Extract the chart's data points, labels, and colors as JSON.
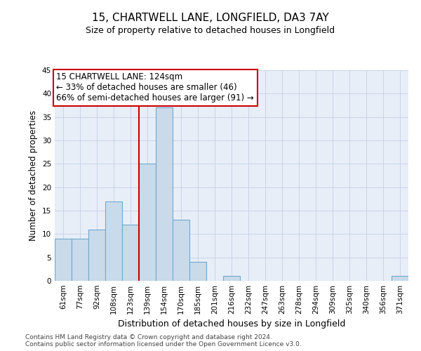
{
  "title1": "15, CHARTWELL LANE, LONGFIELD, DA3 7AY",
  "title2": "Size of property relative to detached houses in Longfield",
  "xlabel": "Distribution of detached houses by size in Longfield",
  "ylabel": "Number of detached properties",
  "categories": [
    "61sqm",
    "77sqm",
    "92sqm",
    "108sqm",
    "123sqm",
    "139sqm",
    "154sqm",
    "170sqm",
    "185sqm",
    "201sqm",
    "216sqm",
    "232sqm",
    "247sqm",
    "263sqm",
    "278sqm",
    "294sqm",
    "309sqm",
    "325sqm",
    "340sqm",
    "356sqm",
    "371sqm"
  ],
  "values": [
    9,
    9,
    11,
    17,
    12,
    25,
    37,
    13,
    4,
    0,
    1,
    0,
    0,
    0,
    0,
    0,
    0,
    0,
    0,
    0,
    1
  ],
  "bar_color": "#c9daea",
  "bar_edge_color": "#6fa8d0",
  "grid_color": "#c8d4e8",
  "background_color": "#e8eef8",
  "vline_color": "#cc0000",
  "vline_x_index": 4.5,
  "annotation_line1": "15 CHARTWELL LANE: 124sqm",
  "annotation_line2": "← 33% of detached houses are smaller (46)",
  "annotation_line3": "66% of semi-detached houses are larger (91) →",
  "annotation_box_edgecolor": "#cc0000",
  "ylim": [
    0,
    45
  ],
  "yticks": [
    0,
    5,
    10,
    15,
    20,
    25,
    30,
    35,
    40,
    45
  ],
  "footer1": "Contains HM Land Registry data © Crown copyright and database right 2024.",
  "footer2": "Contains public sector information licensed under the Open Government Licence v3.0.",
  "title1_fontsize": 11,
  "title2_fontsize": 9,
  "ylabel_fontsize": 8.5,
  "xlabel_fontsize": 9,
  "tick_fontsize": 7.5,
  "footer_fontsize": 6.5,
  "ann_fontsize": 8.5
}
